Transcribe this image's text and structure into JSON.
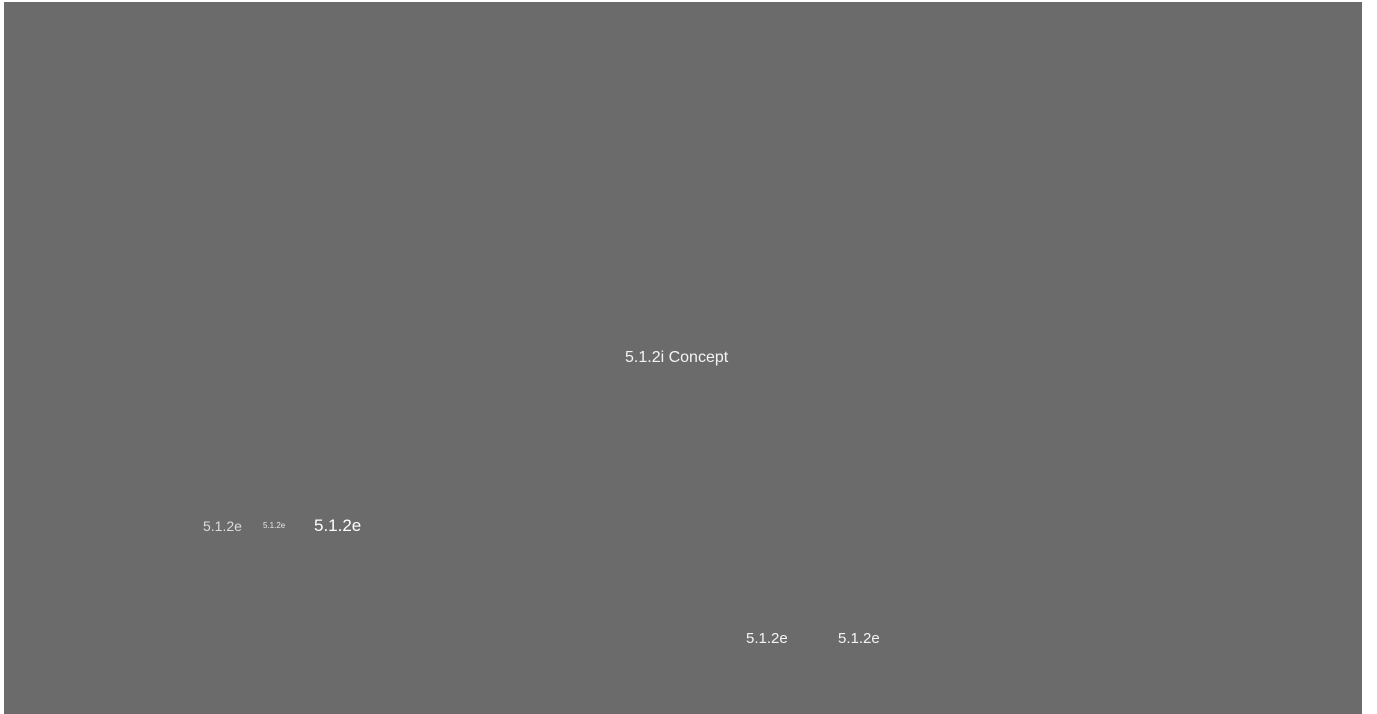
{
  "background_color": "#6b6b6b",
  "text_color": "#f4f4f4",
  "labels": {
    "concept": "5.1.2i Concept",
    "left_group": [
      "5.1.2e",
      "5.1.2e",
      "5.1.2e"
    ],
    "right_group": [
      "5.1.2e",
      "5.1.2e"
    ]
  }
}
